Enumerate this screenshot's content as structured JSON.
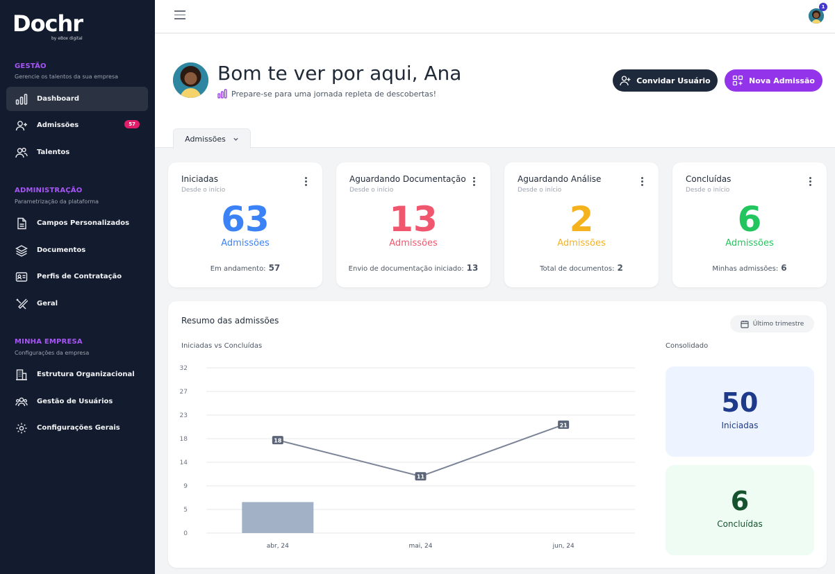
{
  "brand": {
    "name": "Dochr",
    "by": "by eBox digital"
  },
  "sidebar": {
    "sections": [
      {
        "title": "GESTÃO",
        "subtitle": "Gerencie os talentos da sua empresa",
        "items": [
          {
            "label": "Dashboard",
            "icon": "bar-chart-icon",
            "active": true
          },
          {
            "label": "Admissões",
            "icon": "user-plus-icon",
            "badge": "57"
          },
          {
            "label": "Talentos",
            "icon": "users-icon"
          }
        ]
      },
      {
        "title": "ADMINISTRAÇÃO",
        "subtitle": "Parametrização da plataforma",
        "items": [
          {
            "label": "Campos Personalizados",
            "icon": "file-icon"
          },
          {
            "label": "Documentos",
            "icon": "layers-icon"
          },
          {
            "label": "Perfis de Contratação",
            "icon": "id-card-icon"
          },
          {
            "label": "Geral",
            "icon": "tools-icon"
          }
        ]
      },
      {
        "title": "MINHA EMPRESA",
        "subtitle": "Configurações da empresa",
        "items": [
          {
            "label": "Estrutura Organizacional",
            "icon": "building-icon"
          },
          {
            "label": "Gestão de Usuários",
            "icon": "group-icon"
          },
          {
            "label": "Configurações Gerais",
            "icon": "gear-icon"
          }
        ]
      }
    ]
  },
  "topbar": {
    "notification_count": "1"
  },
  "header": {
    "greeting": "Bom te ver por aqui, Ana",
    "subtitle": "Prepare-se para uma jornada repleta de descobertas!",
    "invite_button": "Convidar Usuário",
    "new_admission_button": "Nova Admissão",
    "tab_label": "Admissões"
  },
  "cards": [
    {
      "title": "Iniciadas",
      "subtitle": "Desde o início",
      "value": "63",
      "unit": "Admissões",
      "foot_label": "Em andamento:",
      "foot_value": "57",
      "color": "#3b82f6"
    },
    {
      "title": "Aguardando Documentação",
      "subtitle": "Desde o início",
      "value": "13",
      "unit": "Admissões",
      "foot_label": "Envio de documentação iniciado:",
      "foot_value": "13",
      "color": "#f0566d"
    },
    {
      "title": "Aguardando Análise",
      "subtitle": "Desde o início",
      "value": "2",
      "unit": "Admissões",
      "foot_label": "Total de documentos:",
      "foot_value": "2",
      "color": "#f5b21f"
    },
    {
      "title": "Concluídas",
      "subtitle": "Desde o início",
      "value": "6",
      "unit": "Admissões",
      "foot_label": "Minhas admissões:",
      "foot_value": "6",
      "color": "#22c55e"
    }
  ],
  "summary": {
    "title": "Resumo das admissões",
    "period_button": "Último trimestre",
    "chart_title": "Iniciadas vs Concluídas",
    "consolidated_title": "Consolidado",
    "kpis": [
      {
        "value": "50",
        "label": "Iniciadas",
        "bg": "#eef4ff",
        "color": "#1e3a8a"
      },
      {
        "value": "6",
        "label": "Concluídas",
        "bg": "#effcf3",
        "color": "#14532d"
      }
    ]
  },
  "chart_data": {
    "type": "bar",
    "title": "Iniciadas vs Concluídas",
    "categories": [
      "abr, 24",
      "mai, 24",
      "jun, 24"
    ],
    "y_ticks": [
      "0",
      "5",
      "9",
      "14",
      "18",
      "23",
      "27",
      "32"
    ],
    "ylim": [
      0,
      32
    ],
    "bar_values": [
      6,
      0,
      0
    ],
    "line_values": [
      18,
      11,
      21
    ],
    "line_labels": [
      "18",
      "11",
      "21"
    ],
    "bar_color": "#a3b1c6",
    "line_color": "#7b8396",
    "grid": true
  }
}
